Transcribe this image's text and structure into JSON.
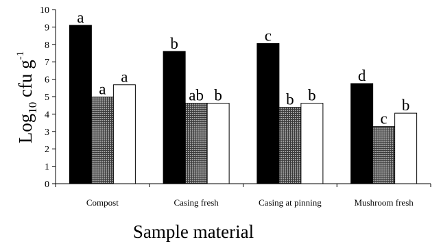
{
  "chart_data": {
    "type": "bar",
    "xlabel": "Sample material",
    "ylabel": {
      "prefix": "Log",
      "subscript": "10",
      "middle": " cfu g",
      "superscript": "-1"
    },
    "ylim": [
      0,
      10
    ],
    "yticks": [
      0,
      1,
      2,
      3,
      4,
      5,
      6,
      7,
      8,
      9,
      10
    ],
    "grid": false,
    "legend": "none",
    "categories": [
      "Compost",
      "Casing fresh",
      "Casing at pinning",
      "Mushroom fresh"
    ],
    "series": [
      {
        "fill": "#000000",
        "pattern": "solid",
        "values": [
          9.1,
          7.6,
          8.05,
          5.75
        ],
        "labels": [
          "a",
          "b",
          "c",
          "d"
        ]
      },
      {
        "fill": "#808080",
        "pattern": "crosshatch",
        "values": [
          4.98,
          4.62,
          4.38,
          3.28
        ],
        "labels": [
          "a",
          "ab",
          "b",
          "c"
        ]
      },
      {
        "fill": "#ffffff",
        "pattern": "solid",
        "values": [
          5.68,
          4.62,
          4.62,
          4.05
        ],
        "labels": [
          "a",
          "b",
          "b",
          "b"
        ]
      }
    ]
  }
}
